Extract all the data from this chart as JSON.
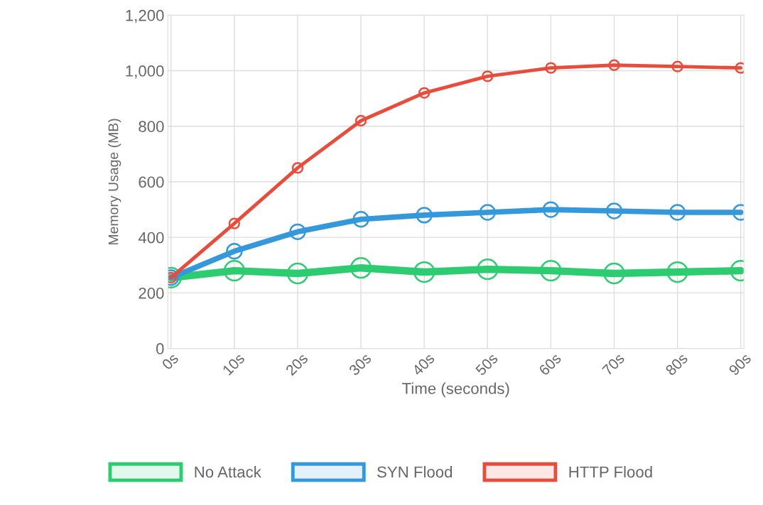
{
  "chart_data": {
    "type": "line",
    "xlabel": "Time (seconds)",
    "ylabel": "Memory Usage (MB)",
    "categories": [
      "0s",
      "10s",
      "20s",
      "30s",
      "40s",
      "50s",
      "60s",
      "70s",
      "80s",
      "90s"
    ],
    "series": [
      {
        "name": "No Attack",
        "color": "#2ecc71",
        "values": [
          255,
          280,
          270,
          290,
          275,
          285,
          280,
          270,
          275,
          280
        ]
      },
      {
        "name": "SYN Flood",
        "color": "#3498db",
        "values": [
          255,
          350,
          420,
          465,
          480,
          490,
          500,
          495,
          490,
          490
        ]
      },
      {
        "name": "HTTP Flood",
        "color": "#e74c3c",
        "values": [
          255,
          450,
          650,
          820,
          920,
          980,
          1010,
          1020,
          1015,
          1010
        ]
      }
    ],
    "ylim": [
      0,
      1200
    ],
    "yticks": [
      0,
      200,
      400,
      600,
      800,
      {
        "value": 1000,
        "label": "1,000"
      },
      {
        "value": 1200,
        "label": "1,200"
      }
    ],
    "grid": true,
    "legend": "bottom",
    "marker": "circle",
    "line_style": "solid"
  }
}
